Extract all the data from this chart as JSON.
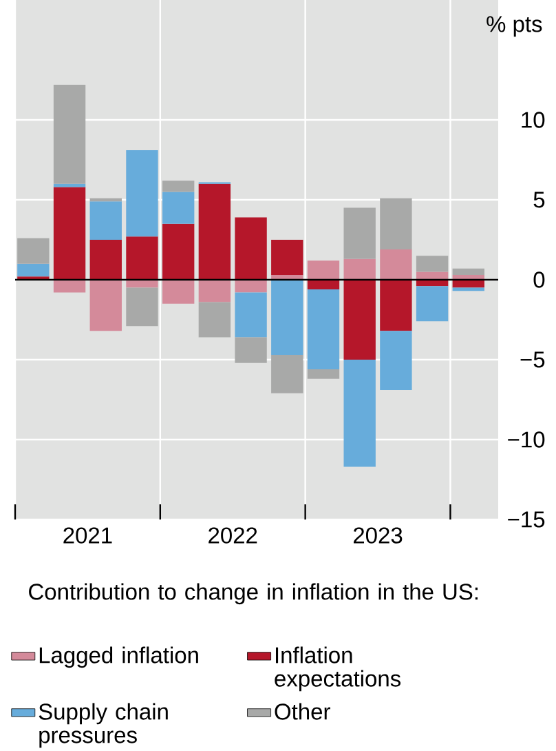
{
  "chart_data": {
    "type": "bar",
    "stacked": true,
    "ylabel": "% pts",
    "legend_title": "Contribution to change in inflation in the US:",
    "legend": "bottom",
    "grid": true,
    "x": [
      2021.125,
      2021.375,
      2021.625,
      2021.875,
      2022.125,
      2022.375,
      2022.625,
      2022.875,
      2023.125,
      2023.375,
      2023.625,
      2023.875,
      2024.125
    ],
    "xlim": [
      2021,
      2024.33
    ],
    "xticks": [
      {
        "value": 2021,
        "label": null
      },
      {
        "value": 2021.5,
        "label": "2021"
      },
      {
        "value": 2022,
        "label": null
      },
      {
        "value": 2022.5,
        "label": "2022"
      },
      {
        "value": 2023,
        "label": null
      },
      {
        "value": 2023.5,
        "label": "2023"
      },
      {
        "value": 2024,
        "label": null
      }
    ],
    "ylim": [
      -15,
      17.5
    ],
    "yticks": [
      {
        "value": -15,
        "label": "−15"
      },
      {
        "value": -10,
        "label": "−10"
      },
      {
        "value": -5,
        "label": "−5"
      },
      0,
      5,
      10
    ],
    "ref_lines": [
      {
        "axis": "y",
        "value": 0,
        "color": "#000000"
      }
    ],
    "series": [
      {
        "name": "Lagged inflation",
        "color": "#d48a9a",
        "values": [
          null,
          -0.8,
          -3.2,
          -0.5,
          -1.5,
          -1.4,
          -0.8,
          0.3,
          1.2,
          1.3,
          1.9,
          0.5,
          0.3
        ]
      },
      {
        "name": "Inflation expectations",
        "color": "#b5172a",
        "values": [
          0.2,
          5.8,
          2.5,
          2.7,
          3.5,
          6.0,
          3.9,
          2.2,
          -0.6,
          -5.0,
          -3.2,
          -0.4,
          -0.5
        ]
      },
      {
        "name": "Supply chain pressures",
        "color": "#67acdb",
        "values": [
          0.8,
          0.2,
          2.4,
          5.4,
          2.0,
          0.1,
          -2.8,
          -4.7,
          -5.0,
          -6.7,
          -3.7,
          -2.2,
          -0.2
        ]
      },
      {
        "name": "Other",
        "color": "#a8a9a8",
        "values": [
          1.6,
          6.2,
          0.2,
          -2.4,
          0.7,
          -2.2,
          -1.6,
          -2.4,
          -0.6,
          3.2,
          3.2,
          1.0,
          0.4
        ]
      }
    ]
  }
}
